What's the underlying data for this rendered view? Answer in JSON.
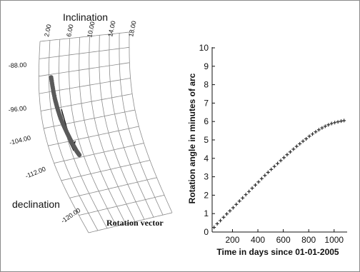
{
  "chart_data": [
    {
      "type": "scatter",
      "projection": "curved 3D grid",
      "title": "Rotation vector",
      "xlabel": "Inclination",
      "ylabel": "declination",
      "x_ticks": [
        "2.00",
        "6.00",
        "10.00",
        "14.00",
        "18.00"
      ],
      "y_ticks": [
        "-88.00",
        "-96.00",
        "-104.00",
        "-112.00",
        "-120.00"
      ],
      "xlim": [
        2,
        18
      ],
      "ylim": [
        -88,
        -120
      ],
      "grid": true,
      "marker_color": "#5a5a5a",
      "arrow": "pointing along the track toward more negative declination",
      "series": [
        {
          "points": [
            {
              "x": 5.0,
              "y": -92.0
            },
            {
              "x": 5.4,
              "y": -94.5
            },
            {
              "x": 5.8,
              "y": -97.0
            },
            {
              "x": 6.2,
              "y": -99.0
            },
            {
              "x": 6.6,
              "y": -101.0
            },
            {
              "x": 7.0,
              "y": -102.5
            },
            {
              "x": 7.4,
              "y": -104.0
            },
            {
              "x": 7.8,
              "y": -105.5
            },
            {
              "x": 8.2,
              "y": -107.0
            },
            {
              "x": 8.6,
              "y": -108.5
            },
            {
              "x": 9.0,
              "y": -109.5
            }
          ]
        }
      ]
    },
    {
      "type": "scatter",
      "xlabel": "Time in days since 01-01-2005",
      "ylabel": "Rotation angle in minutes of arc",
      "xlim": [
        40,
        1080
      ],
      "ylim": [
        0,
        10
      ],
      "x_ticks": [
        200,
        400,
        600,
        800,
        1000
      ],
      "y_ticks": [
        0,
        1,
        2,
        3,
        4,
        5,
        6,
        7,
        8,
        9,
        10
      ],
      "grid": false,
      "marker": "+",
      "series": [
        {
          "x": [
            55,
            80,
            105,
            130,
            155,
            180,
            205,
            230,
            255,
            280,
            305,
            330,
            355,
            380,
            405,
            430,
            455,
            480,
            505,
            530,
            555,
            580,
            605,
            630,
            655,
            680,
            705,
            730,
            755,
            780,
            805,
            830,
            855,
            880,
            905,
            930,
            955,
            980,
            1005,
            1030,
            1055,
            1078
          ],
          "y": [
            0.25,
            0.45,
            0.62,
            0.8,
            0.98,
            1.15,
            1.32,
            1.5,
            1.68,
            1.85,
            2.03,
            2.2,
            2.38,
            2.55,
            2.72,
            2.9,
            3.07,
            3.24,
            3.4,
            3.56,
            3.72,
            3.88,
            4.04,
            4.2,
            4.35,
            4.5,
            4.65,
            4.79,
            4.93,
            5.06,
            5.2,
            5.32,
            5.44,
            5.55,
            5.65,
            5.74,
            5.82,
            5.89,
            5.94,
            5.98,
            6.02,
            6.05
          ]
        }
      ]
    }
  ]
}
